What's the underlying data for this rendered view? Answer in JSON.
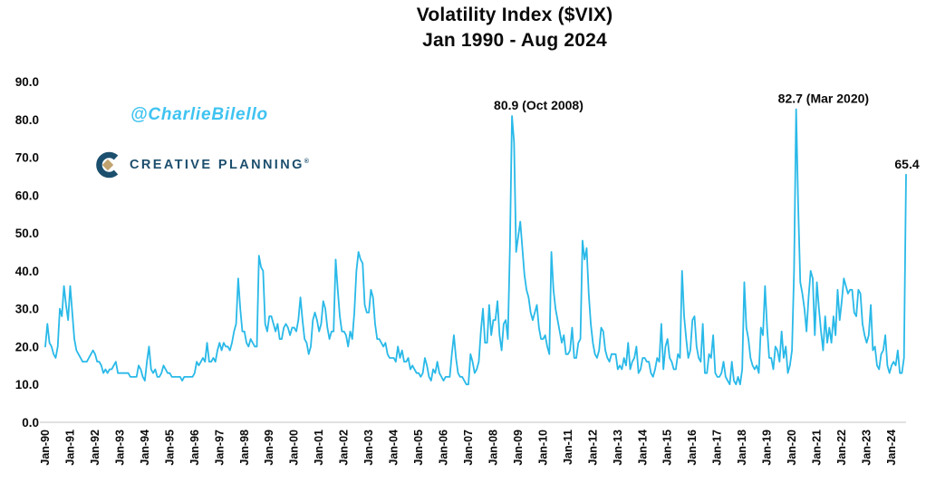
{
  "title": {
    "line1": "Volatility Index ($VIX)",
    "line2": "Jan 1990 - Aug 2024"
  },
  "watermark": "@CharlieBilello",
  "logo": {
    "text": "CREATIVE PLANNING",
    "registered_mark": "®",
    "navy": "#1c4f6e",
    "gold": "#c2a36f"
  },
  "colors": {
    "line": "#29b9e8",
    "watermark": "#3fc3f1",
    "axis_line": "#d9d9d9",
    "text": "#0a0a0a"
  },
  "chart_data": {
    "type": "line",
    "title": "Volatility Index ($VIX)",
    "subtitle": "Jan 1990 - Aug 2024",
    "series_name": "VIX",
    "frequency": "monthly",
    "x_start": "1990-01",
    "x_end": "2024-08",
    "ylim": [
      0,
      90
    ],
    "grid": false,
    "legend": false,
    "y_tick_labels": [
      "90.0",
      "80.0",
      "70.0",
      "60.0",
      "50.0",
      "40.0",
      "30.0",
      "20.0",
      "10.0",
      "0.0"
    ],
    "x_tick_labels": [
      "Jan-90",
      "Jan-91",
      "Jan-92",
      "Jan-93",
      "Jan-94",
      "Jan-95",
      "Jan-96",
      "Jan-97",
      "Jan-98",
      "Jan-99",
      "Jan-00",
      "Jan-01",
      "Jan-02",
      "Jan-03",
      "Jan-04",
      "Jan-05",
      "Jan-06",
      "Jan-07",
      "Jan-08",
      "Jan-09",
      "Jan-10",
      "Jan-11",
      "Jan-12",
      "Jan-13",
      "Jan-14",
      "Jan-15",
      "Jan-16",
      "Jan-17",
      "Jan-18",
      "Jan-19",
      "Jan-20",
      "Jan-21",
      "Jan-22",
      "Jan-23",
      "Jan-24"
    ],
    "values": [
      20,
      26,
      21,
      20,
      18,
      17,
      20,
      30,
      28,
      36,
      31,
      27,
      36,
      29,
      22,
      19,
      18,
      17,
      16,
      16,
      16,
      17,
      18,
      19,
      18,
      16,
      16,
      15,
      13,
      14,
      13,
      14,
      14,
      15,
      16,
      13,
      13,
      13,
      13,
      13,
      13,
      12,
      12,
      12,
      12,
      15,
      14,
      12,
      11,
      16,
      20,
      14,
      13,
      14,
      12,
      12,
      13,
      15,
      14,
      13,
      13,
      12,
      12,
      12,
      12,
      12,
      11,
      12,
      12,
      12,
      12,
      12,
      13,
      16,
      15,
      16,
      17,
      16,
      21,
      16,
      16,
      17,
      16,
      19,
      21,
      19,
      21,
      20,
      20,
      19,
      21,
      24,
      26,
      38,
      30,
      24,
      24,
      21,
      20,
      22,
      21,
      20,
      20,
      44,
      41,
      40,
      26,
      24,
      28,
      28,
      26,
      24,
      26,
      22,
      22,
      25,
      26,
      25,
      23,
      25,
      25,
      24,
      27,
      33,
      27,
      22,
      21,
      18,
      20,
      27,
      29,
      27,
      24,
      26,
      32,
      30,
      25,
      22,
      24,
      24,
      43,
      35,
      28,
      24,
      24,
      23,
      20,
      24,
      22,
      29,
      40,
      45,
      43,
      42,
      31,
      29,
      29,
      35,
      33,
      26,
      22,
      22,
      21,
      20,
      21,
      18,
      17,
      17,
      17,
      16,
      20,
      17,
      19,
      16,
      16,
      17,
      14,
      15,
      14,
      13,
      13,
      12,
      13,
      17,
      15,
      12,
      11,
      14,
      13,
      16,
      13,
      12,
      11,
      12,
      12,
      12,
      18,
      23,
      17,
      13,
      12,
      12,
      11,
      10,
      10,
      18,
      16,
      13,
      14,
      16,
      24,
      30,
      21,
      21,
      31,
      23,
      27,
      27,
      32,
      23,
      19,
      26,
      27,
      22,
      46,
      80.9,
      74,
      45,
      49,
      53,
      46,
      39,
      35,
      33,
      29,
      27,
      29,
      31,
      25,
      22,
      22,
      23,
      20,
      18,
      45,
      35,
      30,
      27,
      24,
      21,
      23,
      18,
      18,
      19,
      25,
      17,
      17,
      21,
      22,
      48,
      43,
      46,
      34,
      26,
      21,
      18,
      17,
      19,
      25,
      24,
      19,
      17,
      16,
      18,
      18,
      18,
      14,
      15,
      14,
      17,
      15,
      21,
      14,
      16,
      17,
      20,
      13,
      14,
      17,
      17,
      16,
      16,
      13,
      12,
      14,
      17,
      16,
      26,
      14,
      20,
      22,
      17,
      16,
      14,
      14,
      18,
      17,
      40,
      28,
      22,
      17,
      19,
      27,
      28,
      20,
      17,
      16,
      26,
      13,
      13,
      18,
      17,
      23,
      13,
      12,
      12,
      13,
      16,
      12,
      11,
      10,
      16,
      11,
      10,
      12,
      10,
      14,
      37,
      25,
      22,
      17,
      15,
      14,
      15,
      13,
      25,
      23,
      36,
      25,
      17,
      17,
      14,
      20,
      19,
      16,
      24,
      17,
      20,
      13,
      15,
      19,
      40,
      82.7,
      57,
      37,
      34,
      30,
      24,
      33,
      40,
      38,
      23,
      37,
      30,
      24,
      19,
      28,
      21,
      25,
      21,
      28,
      23,
      35,
      27,
      32,
      38,
      36,
      34,
      35,
      35,
      29,
      28,
      35,
      34,
      26,
      23,
      21,
      23,
      31,
      19,
      20,
      15,
      14,
      18,
      19,
      23,
      15,
      13,
      15,
      16,
      15,
      19,
      13,
      13,
      17,
      65.4
    ],
    "annotations": [
      {
        "label": "80.9 (Oct 2008)",
        "month": "2008-10",
        "value": 80.9
      },
      {
        "label": "82.7 (Mar 2020)",
        "month": "2020-03",
        "value": 82.7
      },
      {
        "label": "65.4",
        "month": "2024-08",
        "value": 65.4
      }
    ]
  }
}
